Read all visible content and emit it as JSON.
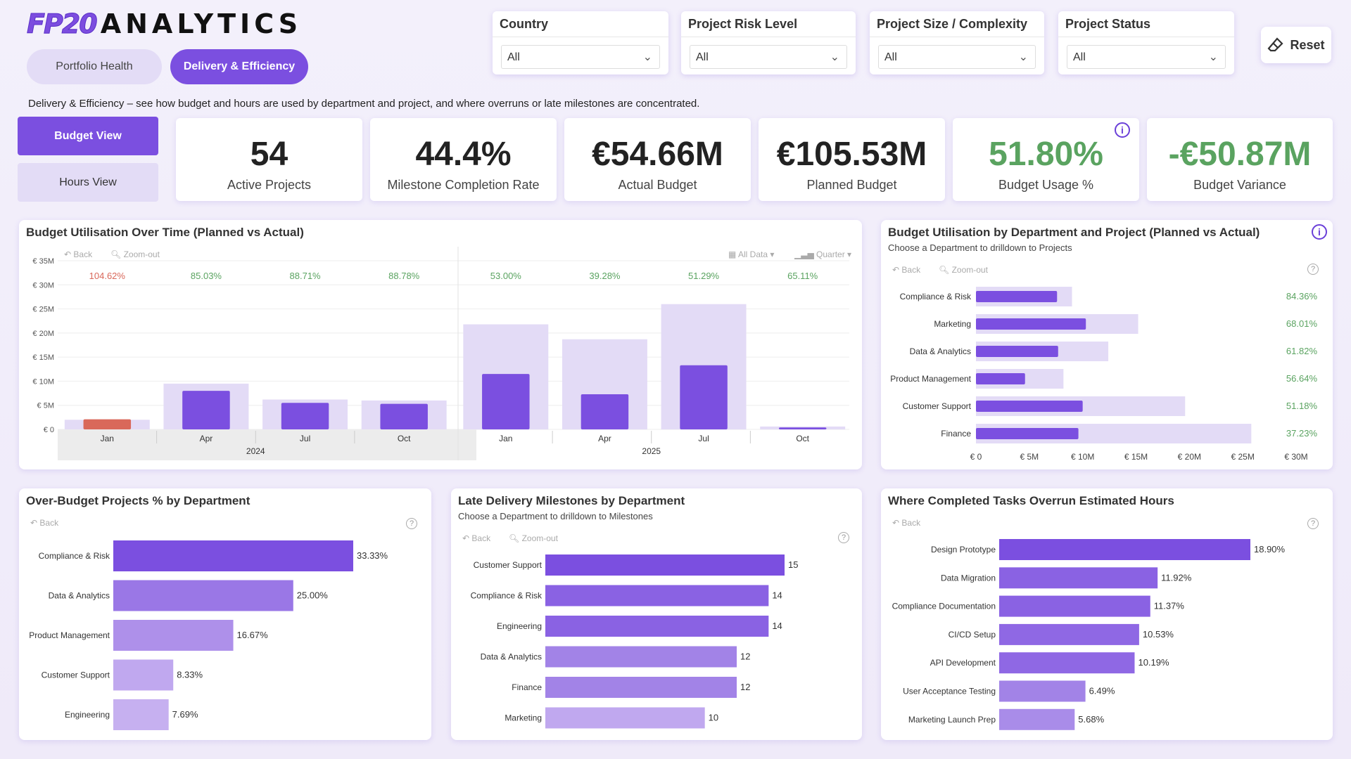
{
  "brand": {
    "mark": "FP20",
    "word": "ANALYTICS"
  },
  "nav": {
    "tabs": [
      {
        "label": "Portfolio Health"
      },
      {
        "label": "Delivery & Efficiency"
      }
    ]
  },
  "filters": [
    {
      "label": "Country",
      "value": "All"
    },
    {
      "label": "Project Risk Level",
      "value": "All"
    },
    {
      "label": "Project Size / Complexity",
      "value": "All"
    },
    {
      "label": "Project Status",
      "value": "All"
    }
  ],
  "reset_label": "Reset",
  "description": "Delivery & Efficiency – see how budget and hours are used by department and project, and where overruns or late milestones are concentrated.",
  "views": {
    "budget": "Budget View",
    "hours": "Hours View"
  },
  "kpis": [
    {
      "value": "54",
      "label": "Active Projects"
    },
    {
      "value": "44.4%",
      "label": "Milestone Completion Rate"
    },
    {
      "value": "€54.66M",
      "label": "Actual Budget"
    },
    {
      "value": "€105.53M",
      "label": "Planned Budget"
    },
    {
      "value": "51.80%",
      "label": "Budget Usage %"
    },
    {
      "value": "-€50.87M",
      "label": "Budget Variance"
    }
  ],
  "toolbar": {
    "back": "Back",
    "zoom_out": "Zoom-out",
    "all_data": "All Data",
    "quarter": "Quarter"
  },
  "colors": {
    "accent": "#7b4fe0",
    "planned": "#e3dbf6",
    "over": "#d9685a",
    "good": "#5aa360"
  },
  "chart_data": [
    {
      "type": "bar",
      "title": "Budget Utilisation Over Time (Planned vs Actual)",
      "categories": [
        "Jan",
        "Apr",
        "Jul",
        "Oct",
        "Jan",
        "Apr",
        "Jul",
        "Oct"
      ],
      "years": [
        {
          "label": "2024",
          "span": 4
        },
        {
          "label": "2025",
          "span": 4
        }
      ],
      "series": [
        {
          "name": "Planned",
          "values": [
            2.0,
            9.5,
            6.2,
            6.0,
            21.8,
            18.7,
            26.0,
            0.6
          ]
        },
        {
          "name": "Actual",
          "values": [
            2.1,
            8.0,
            5.5,
            5.3,
            11.5,
            7.3,
            13.3,
            0.4
          ]
        }
      ],
      "usage_labels": [
        "104.62%",
        "85.03%",
        "88.71%",
        "88.78%",
        "53.00%",
        "39.28%",
        "51.29%",
        "65.11%"
      ],
      "y_ticks": [
        "€ 0",
        "€ 5M",
        "€ 10M",
        "€ 15M",
        "€ 20M",
        "€ 25M",
        "€ 30M",
        "€ 35M"
      ],
      "ylim": [
        0,
        35
      ]
    },
    {
      "type": "bar",
      "title": "Budget Utilisation by Department and Project (Planned vs Actual)",
      "subtitle": "Choose a Department to drilldown to Projects",
      "categories": [
        "Compliance & Risk",
        "Marketing",
        "Data & Analytics",
        "Product Management",
        "Customer Support",
        "Finance"
      ],
      "series": [
        {
          "name": "Planned",
          "values": [
            9.0,
            15.2,
            12.4,
            8.2,
            19.6,
            25.8
          ]
        },
        {
          "name": "Actual",
          "values": [
            7.6,
            10.3,
            7.7,
            4.6,
            10.0,
            9.6
          ]
        }
      ],
      "usage_labels": [
        "84.36%",
        "68.01%",
        "61.82%",
        "56.64%",
        "51.18%",
        "37.23%"
      ],
      "x_ticks": [
        "€ 0",
        "€ 5M",
        "€ 10M",
        "€ 15M",
        "€ 20M",
        "€ 25M",
        "€ 30M"
      ],
      "xlim": [
        0,
        30
      ]
    },
    {
      "type": "bar",
      "title": "Over-Budget Projects % by Department",
      "categories": [
        "Compliance & Risk",
        "Data & Analytics",
        "Product Management",
        "Customer Support",
        "Engineering"
      ],
      "values": [
        33.33,
        25.0,
        16.67,
        8.33,
        7.69
      ],
      "labels": [
        "33.33%",
        "25.00%",
        "16.67%",
        "8.33%",
        "7.69%"
      ],
      "colors": [
        "#7b4fe0",
        "#9a77e6",
        "#ae90ea",
        "#c0a8ef",
        "#c6b0f0"
      ]
    },
    {
      "type": "bar",
      "title": "Late Delivery Milestones by Department",
      "subtitle": "Choose a Department to drilldown to Milestones",
      "categories": [
        "Customer Support",
        "Compliance & Risk",
        "Engineering",
        "Data & Analytics",
        "Finance",
        "Marketing"
      ],
      "values": [
        15,
        14,
        14,
        12,
        12,
        10
      ],
      "colors": [
        "#7b4fe0",
        "#8a62e3",
        "#8a62e3",
        "#a283e7",
        "#a283e7",
        "#c0a8ef"
      ]
    },
    {
      "type": "bar",
      "title": "Where Completed Tasks Overrun Estimated Hours",
      "categories": [
        "Design Prototype",
        "Data Migration",
        "Compliance Documentation",
        "CI/CD Setup",
        "API Development",
        "User Acceptance Testing",
        "Marketing Launch Prep"
      ],
      "values": [
        18.9,
        11.92,
        11.37,
        10.53,
        10.19,
        6.49,
        5.68
      ],
      "labels": [
        "18.90%",
        "11.92%",
        "11.37%",
        "10.53%",
        "10.19%",
        "6.49%",
        "5.68%"
      ],
      "colors": [
        "#7b4fe0",
        "#8a62e3",
        "#8a62e3",
        "#8f68e4",
        "#8f68e4",
        "#a283e7",
        "#a98ce9"
      ]
    }
  ]
}
